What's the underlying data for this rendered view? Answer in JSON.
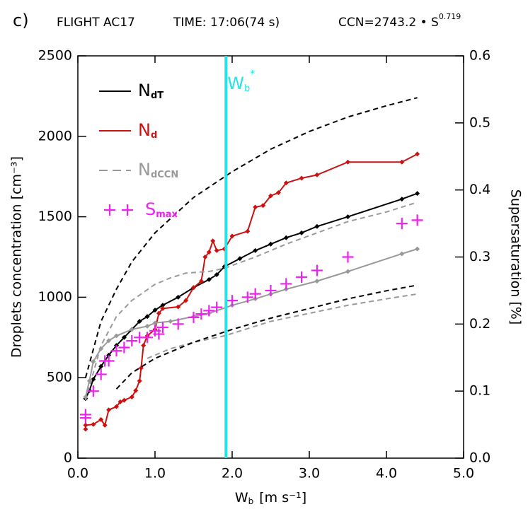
{
  "chart_data": {
    "type": "line",
    "panel_label": "c)",
    "title": [
      "FLIGHT AC17",
      "TIME: 17:06(74 s)",
      "CCN=2743.2 • S"
    ],
    "title_sup": "0.719",
    "y_label": "Droplets concentration [cm⁻³]",
    "y2_label": "Supersaturation [%]",
    "x_label": "W",
    "x_label_sub": "b",
    "x_label_units": "[m s⁻¹]",
    "xlim": [
      0,
      5
    ],
    "xticks": [
      {
        "value": 0,
        "label": "0.0"
      },
      {
        "value": 1,
        "label": "1.0"
      },
      {
        "value": 2,
        "label": "2.0"
      },
      {
        "value": 3,
        "label": "3.0"
      },
      {
        "value": 4,
        "label": "4.0"
      },
      {
        "value": 5,
        "label": "5.0"
      }
    ],
    "ylim": [
      0,
      2500
    ],
    "yticks": [
      0,
      500,
      1000,
      1500,
      2000,
      2500
    ],
    "y2lim": [
      0,
      0.6
    ],
    "y2ticks": [
      {
        "value": 0,
        "label": "0.0"
      },
      {
        "value": 0.1,
        "label": "0.1"
      },
      {
        "value": 0.2,
        "label": "0.2"
      },
      {
        "value": 0.3,
        "label": "0.3"
      },
      {
        "value": 0.4,
        "label": "0.4"
      },
      {
        "value": 0.5,
        "label": "0.5"
      },
      {
        "value": 0.6,
        "label": "0.6"
      }
    ],
    "vline": {
      "x": 1.92,
      "color": "#22e6e6",
      "label": "W",
      "label_sub": "b",
      "label_sup": "*"
    },
    "series": [
      {
        "name": "N",
        "name_sub": "dT",
        "color": "#000000",
        "dash": false,
        "marker": "diamond",
        "x": [
          0.1,
          0.15,
          0.2,
          0.3,
          0.4,
          0.5,
          0.6,
          0.7,
          0.8,
          0.9,
          1.0,
          1.1,
          1.3,
          1.5,
          1.7,
          1.8,
          1.9,
          2.1,
          2.3,
          2.5,
          2.7,
          2.9,
          3.1,
          3.5,
          4.2,
          4.4
        ],
        "values": [
          370,
          420,
          490,
          570,
          640,
          700,
          750,
          800,
          850,
          880,
          920,
          950,
          1000,
          1060,
          1110,
          1140,
          1190,
          1240,
          1290,
          1330,
          1370,
          1400,
          1440,
          1500,
          1610,
          1645
        ]
      },
      {
        "name": "N",
        "name_sub": "d",
        "color": "#cc1111",
        "dash": false,
        "marker": "diamond",
        "x": [
          0.1,
          0.1,
          0.2,
          0.3,
          0.35,
          0.4,
          0.5,
          0.55,
          0.6,
          0.7,
          0.75,
          0.8,
          0.82,
          0.85,
          0.9,
          1.0,
          1.05,
          1.1,
          1.3,
          1.4,
          1.5,
          1.6,
          1.65,
          1.7,
          1.75,
          1.8,
          1.9,
          2.0,
          2.2,
          2.3,
          2.4,
          2.5,
          2.6,
          2.7,
          2.9,
          3.1,
          3.5,
          4.2,
          4.4
        ],
        "values": [
          180,
          205,
          210,
          240,
          205,
          300,
          320,
          350,
          360,
          380,
          420,
          480,
          560,
          700,
          760,
          800,
          900,
          930,
          940,
          980,
          1060,
          1100,
          1250,
          1280,
          1350,
          1290,
          1300,
          1380,
          1410,
          1560,
          1570,
          1630,
          1650,
          1710,
          1740,
          1760,
          1840,
          1840,
          1890
        ]
      },
      {
        "name": "N",
        "name_sub": "dCCN",
        "color": "#999999",
        "dash": true,
        "marker": "none",
        "x": [
          0.1,
          0.3,
          0.5,
          0.7,
          1.0,
          1.2,
          1.4,
          1.7,
          1.9,
          2.3,
          2.7,
          3.1,
          3.5,
          4.0,
          4.4
        ],
        "values": [
          360,
          700,
          880,
          980,
          1080,
          1120,
          1150,
          1160,
          1180,
          1250,
          1330,
          1400,
          1470,
          1530,
          1590
        ]
      },
      {
        "color": "#999999",
        "dash": true,
        "marker": "none",
        "x": [
          0.9,
          1.2,
          1.5,
          1.9,
          2.5,
          3.0,
          3.5,
          4.0,
          4.4
        ],
        "values": [
          620,
          680,
          720,
          760,
          850,
          900,
          950,
          990,
          1020
        ]
      },
      {
        "color": "#999999",
        "dash": false,
        "marker": "diamond",
        "x": [
          0.1,
          0.15,
          0.2,
          0.3,
          0.4,
          0.5,
          0.7,
          0.9,
          1.0,
          1.2,
          1.5,
          1.7,
          2.0,
          2.3,
          2.5,
          2.7,
          3.1,
          3.5,
          4.2,
          4.4
        ],
        "values": [
          380,
          480,
          600,
          680,
          730,
          760,
          800,
          820,
          840,
          850,
          880,
          900,
          950,
          990,
          1020,
          1050,
          1100,
          1160,
          1270,
          1300
        ]
      },
      {
        "color": "#000000",
        "dash": true,
        "marker": "none",
        "x": [
          0.1,
          0.3,
          0.5,
          0.7,
          1.0,
          1.5,
          2.0,
          2.5,
          3.0,
          3.5,
          4.0,
          4.4
        ],
        "values": [
          500,
          850,
          1050,
          1220,
          1400,
          1620,
          1780,
          1920,
          2030,
          2120,
          2190,
          2240
        ]
      },
      {
        "color": "#000000",
        "dash": true,
        "marker": "none",
        "x": [
          0.5,
          0.7,
          1.0,
          1.5,
          2.0,
          2.5,
          3.0,
          3.5,
          4.0,
          4.4
        ],
        "values": [
          430,
          530,
          620,
          720,
          800,
          870,
          930,
          990,
          1040,
          1075
        ]
      },
      {
        "name": "S",
        "name_sub": "max",
        "color": "#ee22ee",
        "axis": "y2",
        "marker": "plus",
        "line": false,
        "x": [
          0.1,
          0.1,
          0.2,
          0.3,
          0.35,
          0.4,
          0.5,
          0.6,
          0.7,
          0.8,
          0.9,
          1.0,
          1.05,
          1.1,
          1.3,
          1.5,
          1.6,
          1.7,
          1.8,
          2.0,
          2.2,
          2.3,
          2.5,
          2.7,
          2.9,
          3.1,
          3.5,
          4.2,
          4.4
        ],
        "values": [
          0.065,
          0.06,
          0.1,
          0.125,
          0.145,
          0.145,
          0.16,
          0.165,
          0.175,
          0.18,
          0.18,
          0.19,
          0.185,
          0.195,
          0.2,
          0.21,
          0.215,
          0.22,
          0.225,
          0.235,
          0.24,
          0.245,
          0.25,
          0.26,
          0.27,
          0.28,
          0.3,
          0.35,
          0.355
        ]
      }
    ]
  }
}
